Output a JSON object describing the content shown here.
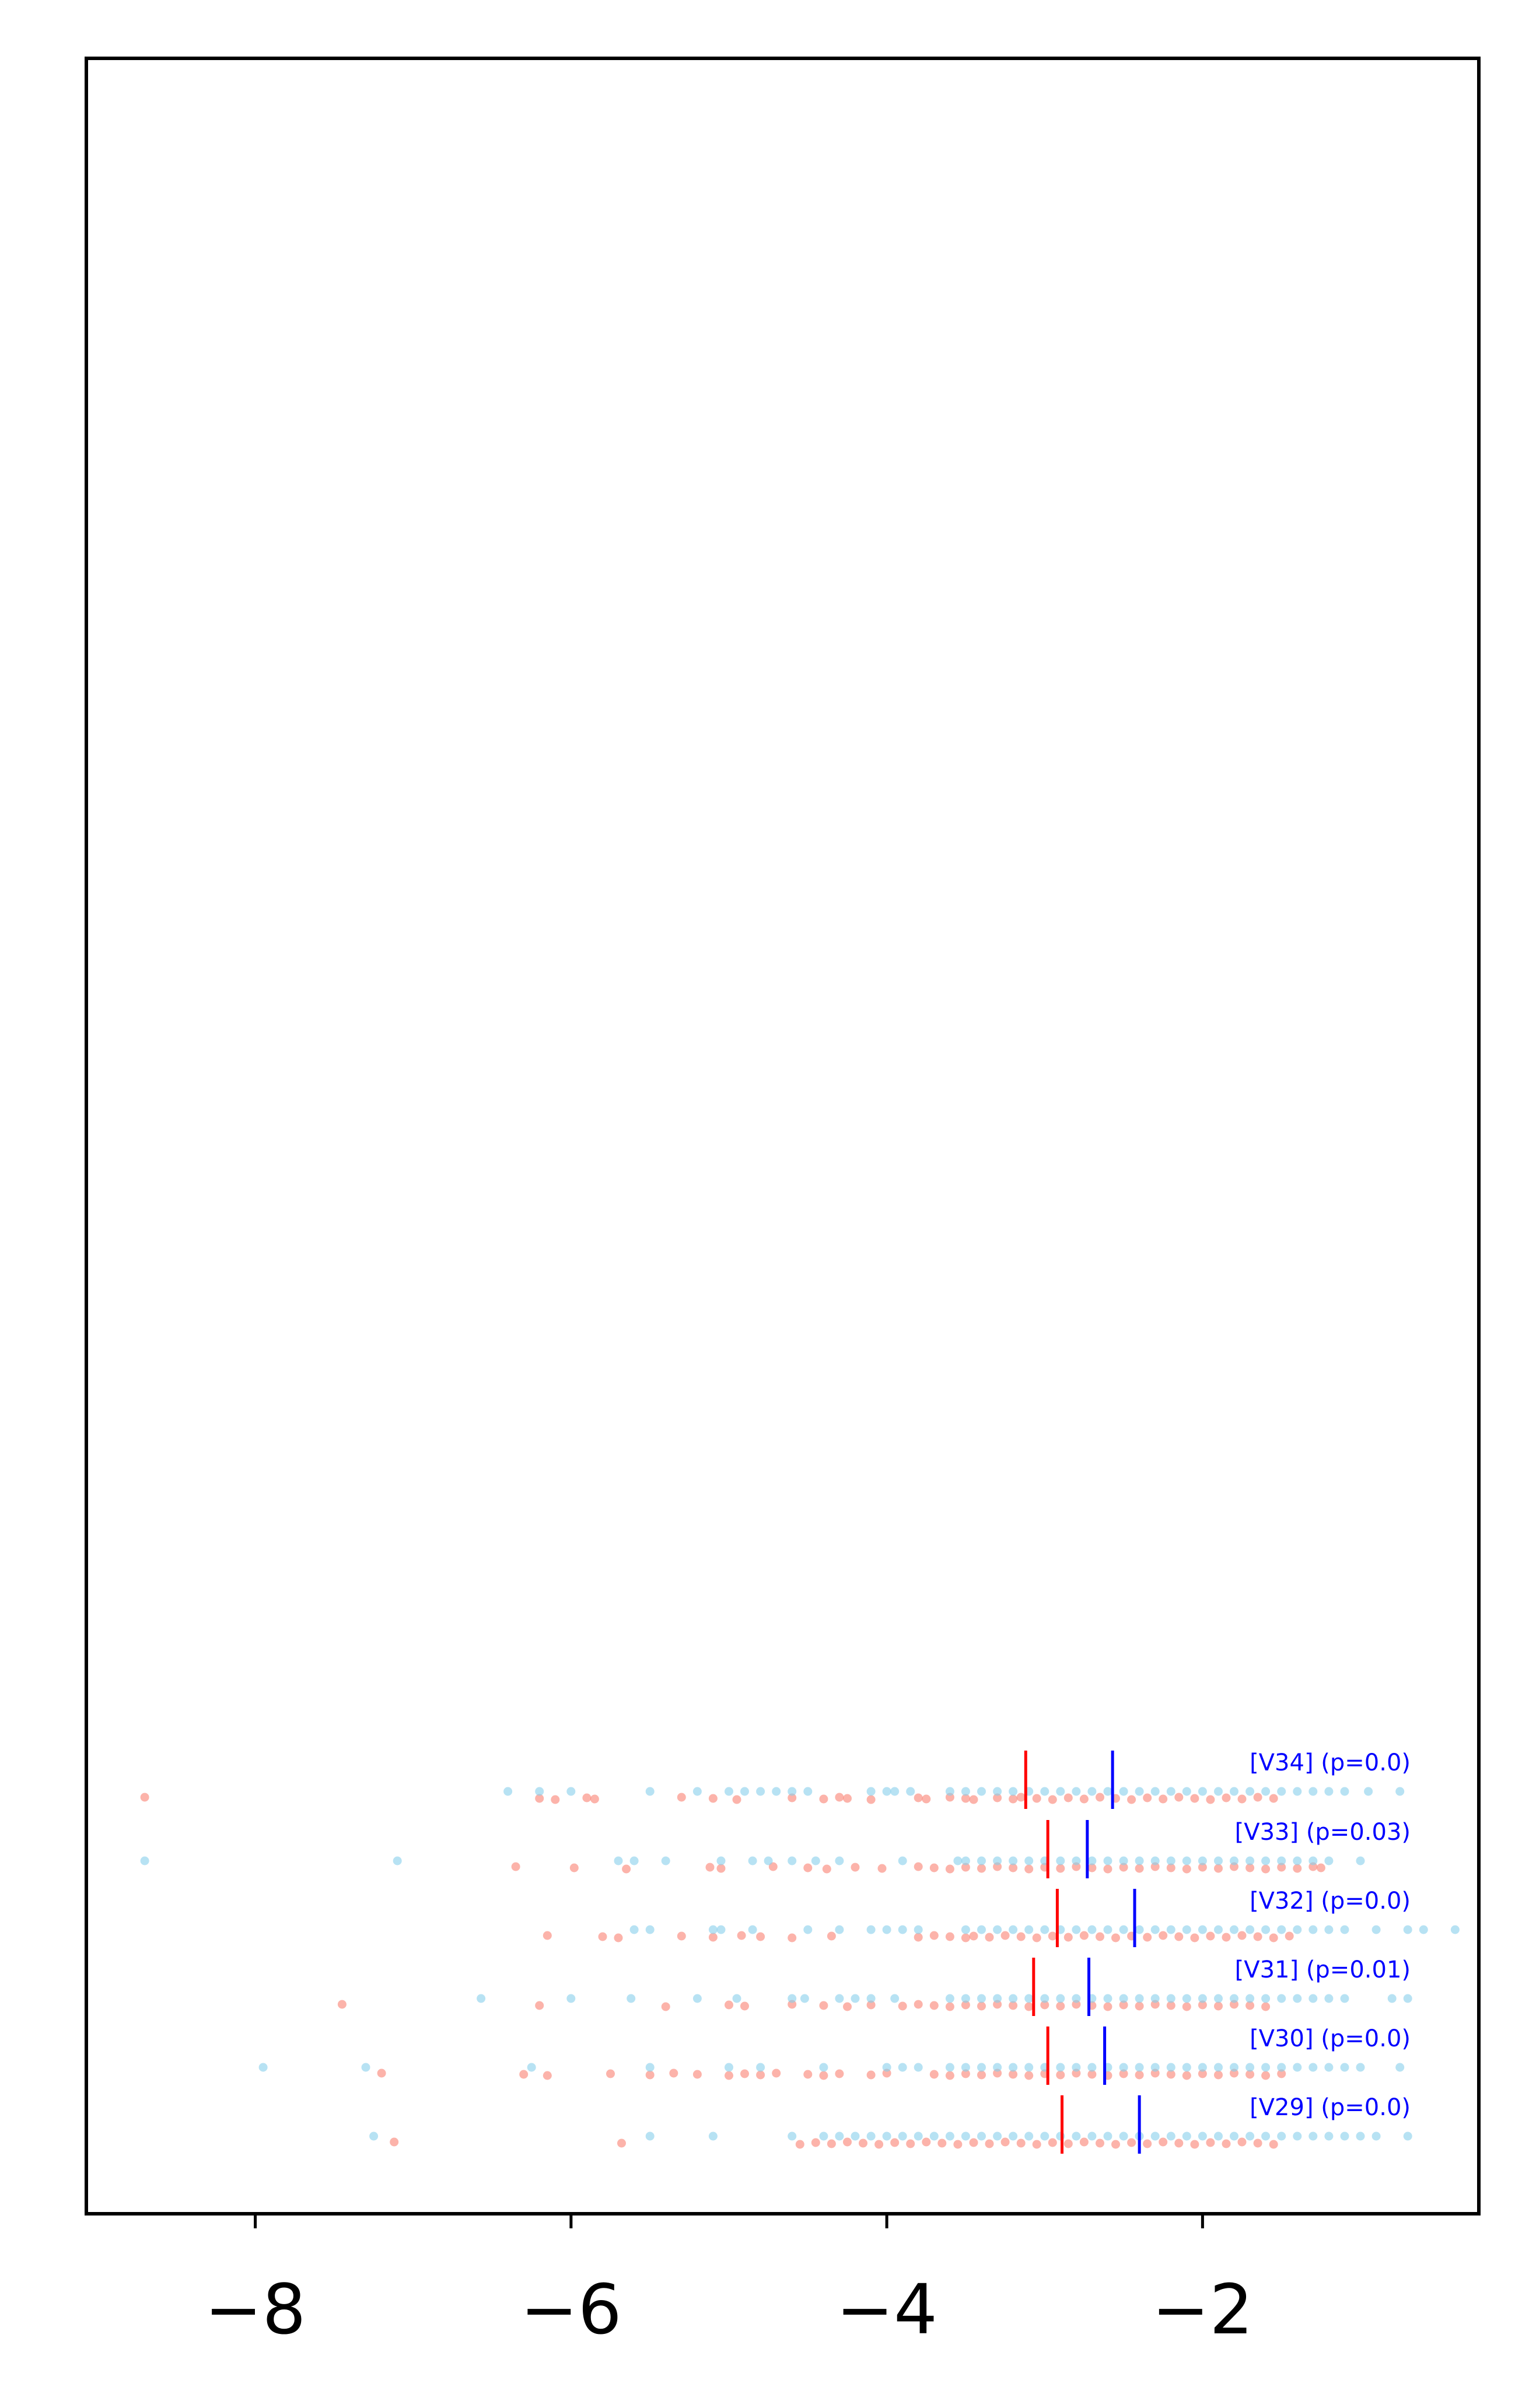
{
  "chart_data": {
    "type": "scatter",
    "title": "",
    "xlabel": "",
    "ylabel": "",
    "xlim": [
      -9.07,
      -0.25
    ],
    "xticks": [
      -8,
      -6,
      -4,
      -2
    ],
    "xtick_labels": [
      "−8",
      "−6",
      "−4",
      "−2"
    ],
    "yticks": [],
    "grid": false,
    "legend": "none",
    "colors": {
      "blue_points": "#87CEEB",
      "red_points": "#FA8072",
      "blue_marker": "#0000FF",
      "red_marker": "#FF0000",
      "row_label": "#0000FF"
    },
    "rows": [
      {
        "label": "[V34] (p=0.0)",
        "blue_mean": -2.57,
        "red_mean": -3.12,
        "blue_points": [
          -6.4,
          -6.2,
          -6.0,
          -5.5,
          -5.2,
          -5.0,
          -4.9,
          -4.8,
          -4.7,
          -4.6,
          -4.5,
          -4.1,
          -4.0,
          -3.95,
          -3.85,
          -3.6,
          -3.5,
          -3.4,
          -3.3,
          -3.2,
          -3.1,
          -3.0,
          -2.9,
          -2.8,
          -2.7,
          -2.6,
          -2.5,
          -2.4,
          -2.3,
          -2.2,
          -2.1,
          -2.0,
          -1.9,
          -1.8,
          -1.7,
          -1.6,
          -1.5,
          -1.4,
          -1.3,
          -1.2,
          -1.1,
          -0.95,
          -0.75
        ],
        "red_points": [
          -8.7,
          -6.2,
          -6.1,
          -5.9,
          -5.85,
          -5.3,
          -5.1,
          -4.95,
          -4.6,
          -4.4,
          -4.3,
          -4.25,
          -4.1,
          -3.8,
          -3.75,
          -3.6,
          -3.5,
          -3.45,
          -3.3,
          -3.2,
          -3.15,
          -3.05,
          -2.95,
          -2.85,
          -2.75,
          -2.65,
          -2.55,
          -2.45,
          -2.35,
          -2.25,
          -2.15,
          -2.05,
          -1.95,
          -1.85,
          -1.75,
          -1.65,
          -1.55
        ]
      },
      {
        "label": "[V33] (p=0.03)",
        "blue_mean": -2.73,
        "red_mean": -2.98,
        "blue_points": [
          -8.7,
          -7.1,
          -5.7,
          -5.6,
          -5.4,
          -5.05,
          -4.85,
          -4.75,
          -4.6,
          -4.45,
          -4.3,
          -3.9,
          -3.55,
          -3.5,
          -3.4,
          -3.3,
          -3.2,
          -3.1,
          -3.0,
          -2.9,
          -2.8,
          -2.7,
          -2.6,
          -2.5,
          -2.4,
          -2.3,
          -2.2,
          -2.1,
          -2.0,
          -1.9,
          -1.8,
          -1.7,
          -1.6,
          -1.5,
          -1.4,
          -1.3,
          -1.2,
          -1.0
        ],
        "red_points": [
          -6.35,
          -5.98,
          -5.65,
          -5.12,
          -5.05,
          -4.72,
          -4.5,
          -4.38,
          -4.2,
          -4.03,
          -3.8,
          -3.7,
          -3.6,
          -3.5,
          -3.4,
          -3.3,
          -3.2,
          -3.1,
          -3.0,
          -2.9,
          -2.8,
          -2.7,
          -2.6,
          -2.5,
          -2.4,
          -2.3,
          -2.2,
          -2.1,
          -2.0,
          -1.9,
          -1.8,
          -1.7,
          -1.6,
          -1.5,
          -1.4,
          -1.3,
          -1.25
        ]
      },
      {
        "label": "[V32] (p=0.0)",
        "blue_mean": -2.43,
        "red_mean": -2.92,
        "blue_points": [
          -5.6,
          -5.5,
          -5.1,
          -5.05,
          -4.85,
          -4.5,
          -4.3,
          -4.1,
          -4.0,
          -3.9,
          -3.8,
          -3.5,
          -3.4,
          -3.3,
          -3.2,
          -3.1,
          -3.0,
          -2.9,
          -2.8,
          -2.7,
          -2.6,
          -2.5,
          -2.4,
          -2.3,
          -2.2,
          -2.1,
          -2.0,
          -1.9,
          -1.8,
          -1.7,
          -1.6,
          -1.5,
          -1.4,
          -1.3,
          -1.2,
          -1.1,
          -0.9,
          -0.7,
          -0.6,
          -0.4
        ],
        "red_points": [
          -6.15,
          -5.8,
          -5.7,
          -5.3,
          -5.1,
          -4.92,
          -4.8,
          -4.6,
          -4.35,
          -3.8,
          -3.7,
          -3.6,
          -3.5,
          -3.45,
          -3.35,
          -3.25,
          -3.15,
          -3.05,
          -2.95,
          -2.85,
          -2.75,
          -2.65,
          -2.55,
          -2.45,
          -2.35,
          -2.25,
          -2.15,
          -2.05,
          -1.95,
          -1.85,
          -1.75,
          -1.65,
          -1.55,
          -1.45
        ]
      },
      {
        "label": "[V31] (p=0.01)",
        "blue_mean": -2.72,
        "red_mean": -3.07,
        "blue_points": [
          -6.57,
          -6.0,
          -5.62,
          -5.2,
          -4.95,
          -4.6,
          -4.52,
          -4.3,
          -4.2,
          -4.1,
          -3.95,
          -3.6,
          -3.5,
          -3.4,
          -3.3,
          -3.2,
          -3.1,
          -3.0,
          -2.9,
          -2.8,
          -2.7,
          -2.6,
          -2.5,
          -2.4,
          -2.3,
          -2.2,
          -2.1,
          -2.0,
          -1.9,
          -1.8,
          -1.7,
          -1.6,
          -1.5,
          -1.4,
          -1.3,
          -1.2,
          -1.1,
          -0.8,
          -0.7
        ],
        "red_points": [
          -7.45,
          -6.2,
          -5.4,
          -5.0,
          -4.9,
          -4.6,
          -4.4,
          -4.25,
          -4.1,
          -3.9,
          -3.8,
          -3.7,
          -3.6,
          -3.5,
          -3.4,
          -3.3,
          -3.2,
          -3.1,
          -3.0,
          -2.9,
          -2.8,
          -2.7,
          -2.6,
          -2.5,
          -2.4,
          -2.3,
          -2.2,
          -2.1,
          -2.0,
          -1.9,
          -1.8,
          -1.7,
          -1.6
        ]
      },
      {
        "label": "[V30] (p=0.0)",
        "blue_mean": -2.62,
        "red_mean": -2.98,
        "blue_points": [
          -7.95,
          -7.3,
          -6.25,
          -5.5,
          -5.0,
          -4.8,
          -4.4,
          -4.0,
          -3.9,
          -3.8,
          -3.6,
          -3.5,
          -3.4,
          -3.3,
          -3.2,
          -3.1,
          -3.0,
          -2.9,
          -2.8,
          -2.7,
          -2.6,
          -2.5,
          -2.4,
          -2.3,
          -2.2,
          -2.1,
          -2.0,
          -1.9,
          -1.8,
          -1.7,
          -1.6,
          -1.5,
          -1.4,
          -1.3,
          -1.2,
          -1.1,
          -1.0,
          -0.75
        ],
        "red_points": [
          -7.2,
          -6.3,
          -6.15,
          -5.75,
          -5.5,
          -5.35,
          -5.2,
          -5.0,
          -4.9,
          -4.8,
          -4.7,
          -4.5,
          -4.4,
          -4.3,
          -4.1,
          -4.0,
          -3.7,
          -3.6,
          -3.5,
          -3.4,
          -3.3,
          -3.2,
          -3.1,
          -3.0,
          -2.9,
          -2.8,
          -2.7,
          -2.6,
          -2.5,
          -2.4,
          -2.3,
          -2.2,
          -2.1,
          -2.0,
          -1.9,
          -1.8,
          -1.7,
          -1.6,
          -1.5
        ]
      },
      {
        "label": "[V29] (p=0.0)",
        "blue_mean": -2.4,
        "red_mean": -2.89,
        "blue_points": [
          -7.25,
          -5.5,
          -5.1,
          -4.6,
          -4.4,
          -4.3,
          -4.2,
          -4.1,
          -4.0,
          -3.9,
          -3.8,
          -3.7,
          -3.6,
          -3.5,
          -3.4,
          -3.3,
          -3.2,
          -3.1,
          -3.0,
          -2.9,
          -2.8,
          -2.7,
          -2.6,
          -2.5,
          -2.4,
          -2.3,
          -2.2,
          -2.1,
          -2.0,
          -1.9,
          -1.8,
          -1.7,
          -1.6,
          -1.5,
          -1.4,
          -1.3,
          -1.2,
          -1.1,
          -1.0,
          -0.9,
          -0.7
        ],
        "red_points": [
          -7.12,
          -5.68,
          -4.55,
          -4.45,
          -4.35,
          -4.25,
          -4.15,
          -4.05,
          -3.95,
          -3.85,
          -3.75,
          -3.65,
          -3.55,
          -3.45,
          -3.35,
          -3.25,
          -3.15,
          -3.05,
          -2.95,
          -2.85,
          -2.75,
          -2.65,
          -2.55,
          -2.45,
          -2.35,
          -2.25,
          -2.15,
          -2.05,
          -1.95,
          -1.85,
          -1.75,
          -1.65,
          -1.55
        ]
      }
    ]
  }
}
